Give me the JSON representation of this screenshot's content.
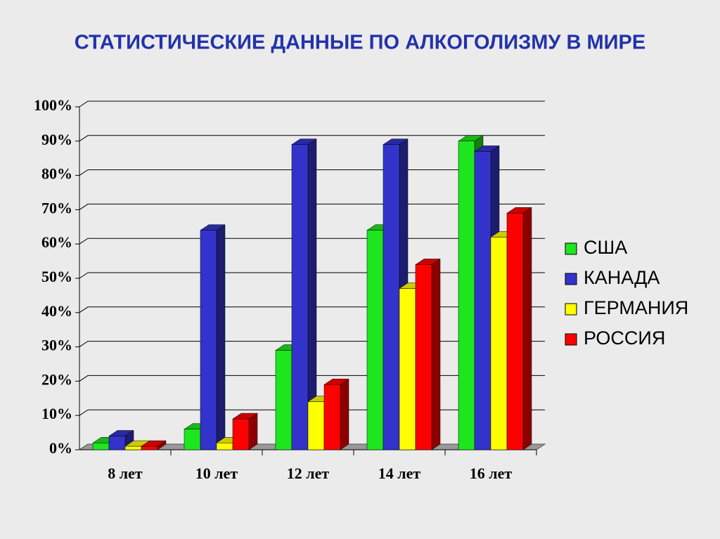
{
  "chart_data": {
    "type": "bar3d",
    "title": "СТАТИСТИЧЕСКИЕ ДАННЫЕ ПО АЛКОГОЛИЗМУ В МИРЕ",
    "categories": [
      "8 лет",
      "10 лет",
      "12 лет",
      "14 лет",
      "16 лет"
    ],
    "series": [
      {
        "name": "США",
        "color": "#1ee61e",
        "values": [
          2,
          6,
          29,
          64,
          90
        ]
      },
      {
        "name": "КАНАДА",
        "color": "#3333cc",
        "values": [
          4,
          64,
          89,
          89,
          87
        ]
      },
      {
        "name": "ГЕРМАНИЯ",
        "color": "#ffff00",
        "values": [
          1,
          2,
          14,
          47,
          62
        ]
      },
      {
        "name": "РОССИЯ",
        "color": "#ff0000",
        "values": [
          1,
          9,
          19,
          54,
          69
        ]
      }
    ],
    "ylim": [
      0,
      100
    ],
    "yticks": [
      {
        "value": 0,
        "label": "0%"
      },
      {
        "value": 10,
        "label": "10%"
      },
      {
        "value": 20,
        "label": "20%"
      },
      {
        "value": 30,
        "label": "30%"
      },
      {
        "value": 40,
        "label": "40%"
      },
      {
        "value": 50,
        "label": "50%"
      },
      {
        "value": 60,
        "label": "60%"
      },
      {
        "value": 70,
        "label": "70%"
      },
      {
        "value": 80,
        "label": "80%"
      },
      {
        "value": 90,
        "label": "90%"
      },
      {
        "value": 100,
        "label": "100%"
      }
    ],
    "grid": true,
    "legend": "right"
  }
}
